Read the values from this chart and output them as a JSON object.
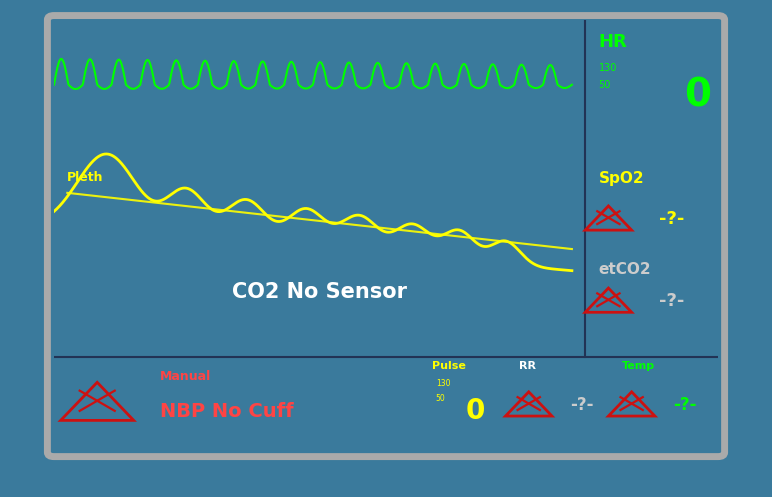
{
  "room_bg": "#3a7a9c",
  "monitor_bg": "#06101e",
  "hr_color": "#00ff00",
  "pleth_color": "#ffff00",
  "white": "#ffffff",
  "red_alarm": "#ff4444",
  "yellow": "#ffff00",
  "green_bright": "#00ff00",
  "gray_text": "#cccccc",
  "hr_label": "HR",
  "hr_range_top": "130",
  "hr_range_bot": "50",
  "hr_value": "0",
  "spo2_label": "SpO2",
  "spo2_value": "-?-",
  "etco2_label": "etCO2",
  "etco2_value": "-?-",
  "co2_text": "CO2 No Sensor",
  "pleth_label": "Pleth",
  "nbp_label_small": "Manual",
  "nbp_label_big": "NBP No Cuff",
  "pulse_label": "Pulse",
  "pulse_range_top": "130",
  "pulse_range_bot": "50",
  "pulse_value": "0",
  "rr_label": "RR",
  "rr_value": "-?-",
  "temp_label": "Temp",
  "temp_value": "-?-"
}
